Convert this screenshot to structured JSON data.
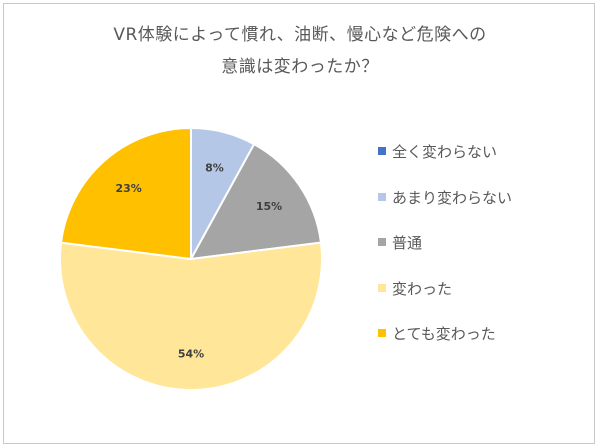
{
  "chart_data": {
    "type": "pie",
    "title_lines": [
      "VR体験によって慣れ、油断、慢心など危険への",
      "意識は変わったか？"
    ],
    "categories": [
      "全く変わらない",
      "あまり変わらない",
      "普通",
      "変わった",
      "とても変わった"
    ],
    "values": [
      0,
      8,
      15,
      54,
      23
    ],
    "value_labels": [
      "",
      "8%",
      "15%",
      "54%",
      "23%"
    ],
    "colors": [
      "#4472c4",
      "#b4c7e7",
      "#a5a5a5",
      "#ffe699",
      "#ffc000"
    ],
    "start": "12 o'clock",
    "direction": "clockwise",
    "legend_position": "right"
  }
}
